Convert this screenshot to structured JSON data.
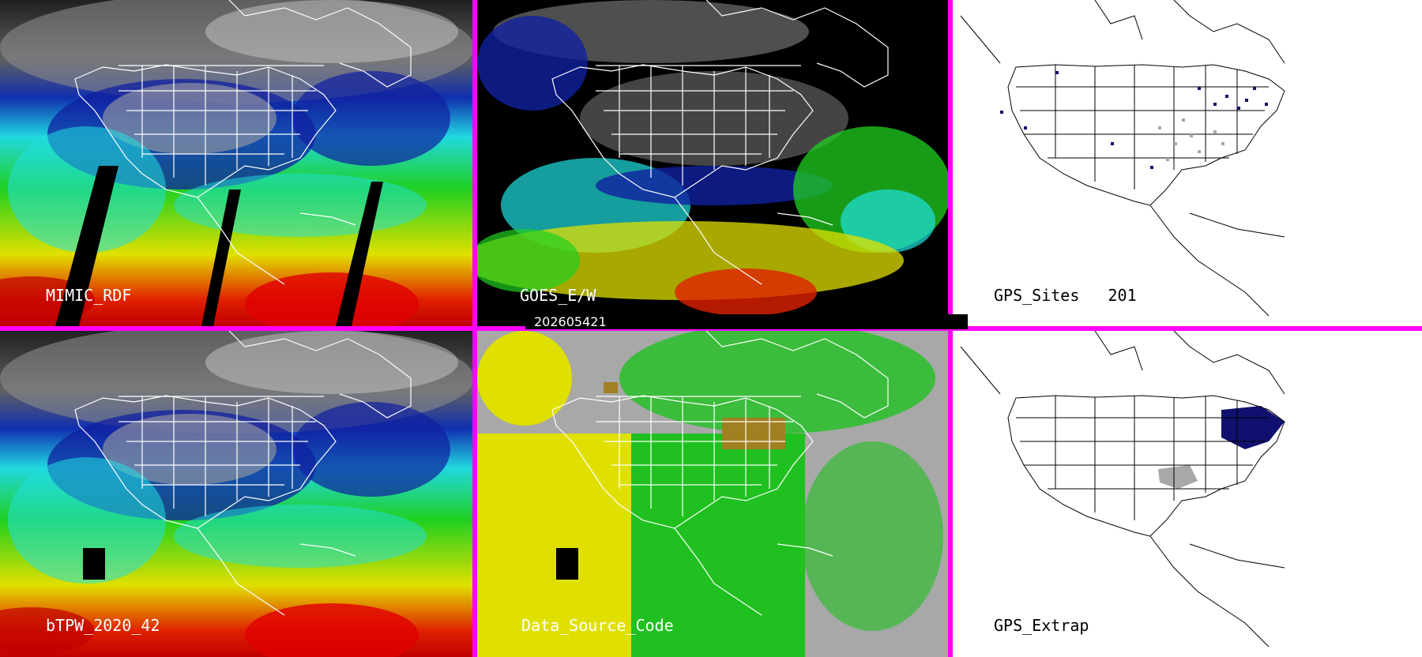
{
  "panels": [
    {
      "id": "mimic",
      "label": "MIMIC_RDF"
    },
    {
      "id": "goes",
      "label": "GOES_E/W"
    },
    {
      "id": "gps-sites",
      "label": "GPS_Sites",
      "count": "201"
    },
    {
      "id": "btpw",
      "label": "bTPW_2020_42"
    },
    {
      "id": "source",
      "label": "Data_Source_Code"
    },
    {
      "id": "gps-extrap",
      "label": "GPS_Extrap"
    }
  ],
  "timestamp": "202605421",
  "colors": {
    "divider": "#ff00ff",
    "tpw_dry": "#3c3c3c",
    "tpw_blue": "#1020a0",
    "tpw_cyan": "#20e0e0",
    "tpw_green": "#20d020",
    "tpw_yellow": "#e0e000",
    "tpw_red": "#e00000",
    "source_yellow": "#e0e000",
    "source_green": "#20c020",
    "source_gray": "#a8a8a8",
    "source_olive": "#a08020"
  }
}
